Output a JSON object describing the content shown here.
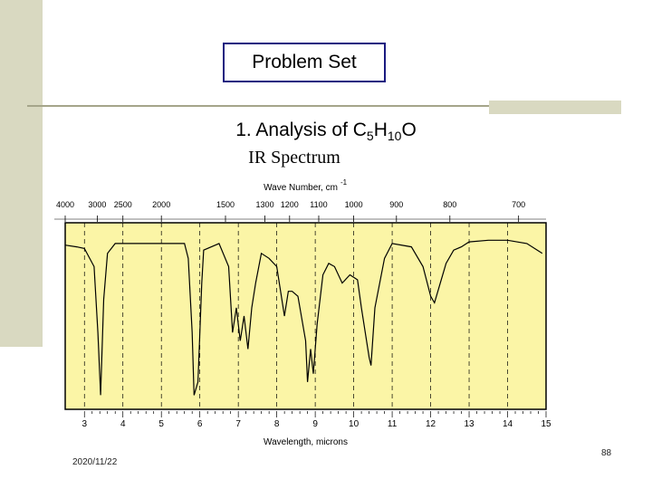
{
  "slide": {
    "title": "Problem Set",
    "heading_prefix": "1. Analysis of C",
    "formula_c_sub": "5",
    "formula_h": "H",
    "formula_h_sub": "10",
    "formula_o": "O",
    "subtitle": "IR Spectrum",
    "date": "2020/11/22",
    "page_number": "88"
  },
  "colors": {
    "plot_background": "#fbf5a6",
    "side_decoration": "#d9d9c1",
    "title_border": "#1a1a80"
  },
  "chart_data": {
    "type": "line",
    "title": "",
    "xlabel": "Wavelength, microns",
    "x2label": "Wave Number, cm",
    "x2label_superscript": "-1",
    "xlim": [
      2.5,
      15
    ],
    "bottom_ticks": [
      "3",
      "4",
      "5",
      "6",
      "7",
      "8",
      "9",
      "10",
      "11",
      "12",
      "13",
      "14",
      "15"
    ],
    "top_ticks": [
      {
        "label": "4000",
        "wavenumber": 4000
      },
      {
        "label": "3000",
        "wavenumber": 3000
      },
      {
        "label": "2500",
        "wavenumber": 2500
      },
      {
        "label": "2000",
        "wavenumber": 2000
      },
      {
        "label": "1500",
        "wavenumber": 1500
      },
      {
        "label": "1300",
        "wavenumber": 1300
      },
      {
        "label": "1200",
        "wavenumber": 1200
      },
      {
        "label": "1100",
        "wavenumber": 1100
      },
      {
        "label": "1000",
        "wavenumber": 1000
      },
      {
        "label": "900",
        "wavenumber": 900
      },
      {
        "label": "800",
        "wavenumber": 800
      },
      {
        "label": "700",
        "wavenumber": 700
      }
    ],
    "grid": "dashed vertical lines at each micron",
    "series": [
      {
        "x": [
          2.5,
          2.8,
          3.0,
          3.25,
          3.35,
          3.42,
          3.5,
          3.6,
          3.8,
          4.5,
          5.0,
          5.6,
          5.7,
          5.8,
          5.85,
          5.95,
          6.05,
          6.1,
          6.5,
          6.75,
          6.85,
          6.95,
          7.05,
          7.15,
          7.25,
          7.35,
          7.45,
          7.6,
          7.8,
          8.0,
          8.2,
          8.3,
          8.4,
          8.55,
          8.75,
          8.8,
          8.88,
          8.95,
          9.05,
          9.2,
          9.35,
          9.5,
          9.7,
          9.9,
          10.1,
          10.2,
          10.4,
          10.45,
          10.55,
          10.8,
          11.0,
          11.5,
          11.8,
          12.0,
          12.1,
          12.25,
          12.4,
          12.6,
          12.8,
          13.0,
          13.5,
          14.0,
          14.5,
          14.9
        ],
        "y": [
          0.07,
          0.08,
          0.09,
          0.2,
          0.6,
          0.98,
          0.4,
          0.12,
          0.06,
          0.06,
          0.06,
          0.06,
          0.15,
          0.6,
          0.98,
          0.9,
          0.3,
          0.1,
          0.06,
          0.2,
          0.6,
          0.45,
          0.65,
          0.5,
          0.7,
          0.45,
          0.3,
          0.12,
          0.15,
          0.2,
          0.5,
          0.35,
          0.35,
          0.38,
          0.65,
          0.9,
          0.7,
          0.85,
          0.55,
          0.25,
          0.18,
          0.2,
          0.3,
          0.25,
          0.28,
          0.45,
          0.75,
          0.8,
          0.45,
          0.15,
          0.06,
          0.08,
          0.2,
          0.38,
          0.42,
          0.3,
          0.18,
          0.1,
          0.08,
          0.05,
          0.04,
          0.04,
          0.06,
          0.12
        ]
      }
    ]
  }
}
